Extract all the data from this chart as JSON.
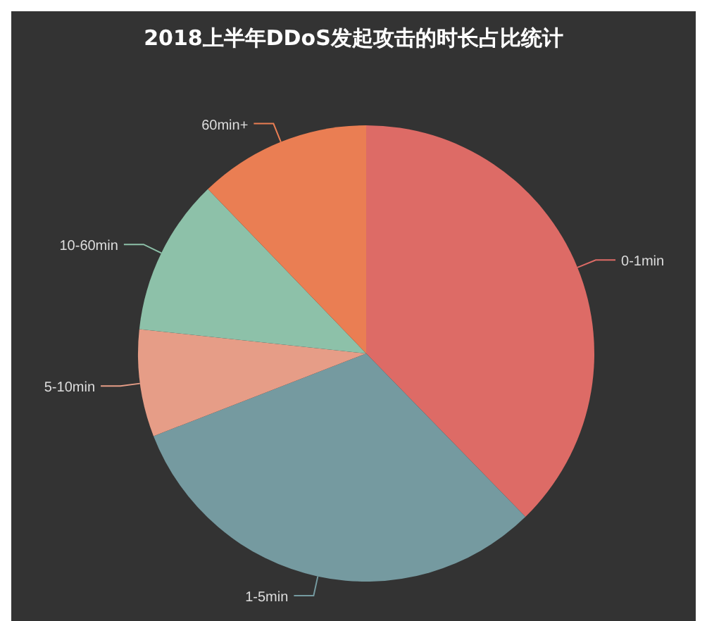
{
  "chart_data": {
    "type": "pie",
    "title": "2018上半年DDoS发起攻击的时长占比统计",
    "categories": [
      "0-1min",
      "1-5min",
      "5-10min",
      "10-60min",
      "60min+"
    ],
    "values": [
      37.7,
      31.4,
      7.6,
      11.1,
      12.2
    ],
    "colors": [
      "#dd6b66",
      "#759aa0",
      "#e69d87",
      "#8dc1a9",
      "#ea7e53"
    ],
    "legend": false
  }
}
